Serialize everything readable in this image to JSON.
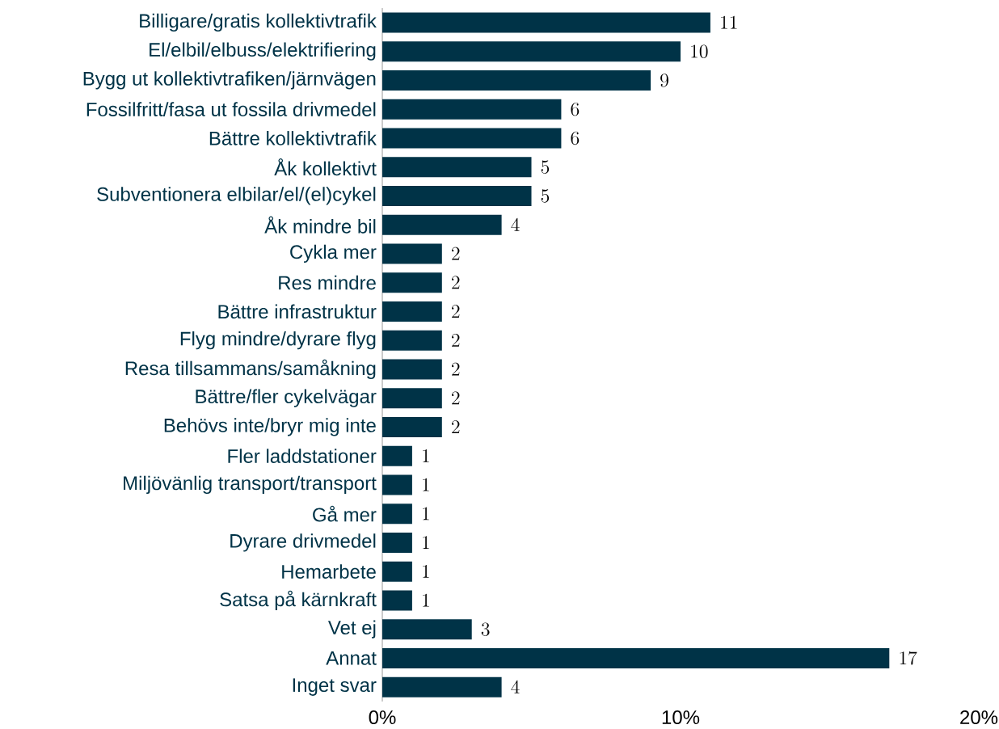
{
  "chart_data": {
    "type": "bar",
    "orientation": "horizontal",
    "categories": [
      "Billigare/gratis kollektivtrafik",
      "El/elbil/elbuss/elektrifiering",
      "Bygg ut kollektivtrafiken/järnvägen",
      "Fossilfritt/fasa ut fossila drivmedel",
      "Bättre kollektivtrafik",
      "Åk kollektivt",
      "Subventionera elbilar/el/(el)cykel",
      "Åk mindre bil",
      "Cykla mer",
      "Res mindre",
      "Bättre infrastruktur",
      "Flyg mindre/dyrare flyg",
      "Resa tillsammans/samåkning",
      "Bättre/fler cykelvägar",
      "Behövs inte/bryr mig inte",
      "Fler laddstationer",
      "Miljövänlig transport/transport",
      "Gå mer",
      "Dyrare drivmedel",
      "Hemarbete",
      "Satsa på kärnkraft",
      "Vet ej",
      "Annat",
      "Inget svar"
    ],
    "values": [
      11,
      10,
      9,
      6,
      6,
      5,
      5,
      4,
      2,
      2,
      2,
      2,
      2,
      2,
      2,
      1,
      1,
      1,
      1,
      1,
      1,
      3,
      17,
      4
    ],
    "color": "#003347",
    "xlim": [
      0,
      20
    ],
    "xticks": [
      {
        "value": 0,
        "label": "0%"
      },
      {
        "value": 10,
        "label": "10%"
      },
      {
        "value": 20,
        "label": "20%"
      }
    ],
    "data_labels": true
  }
}
